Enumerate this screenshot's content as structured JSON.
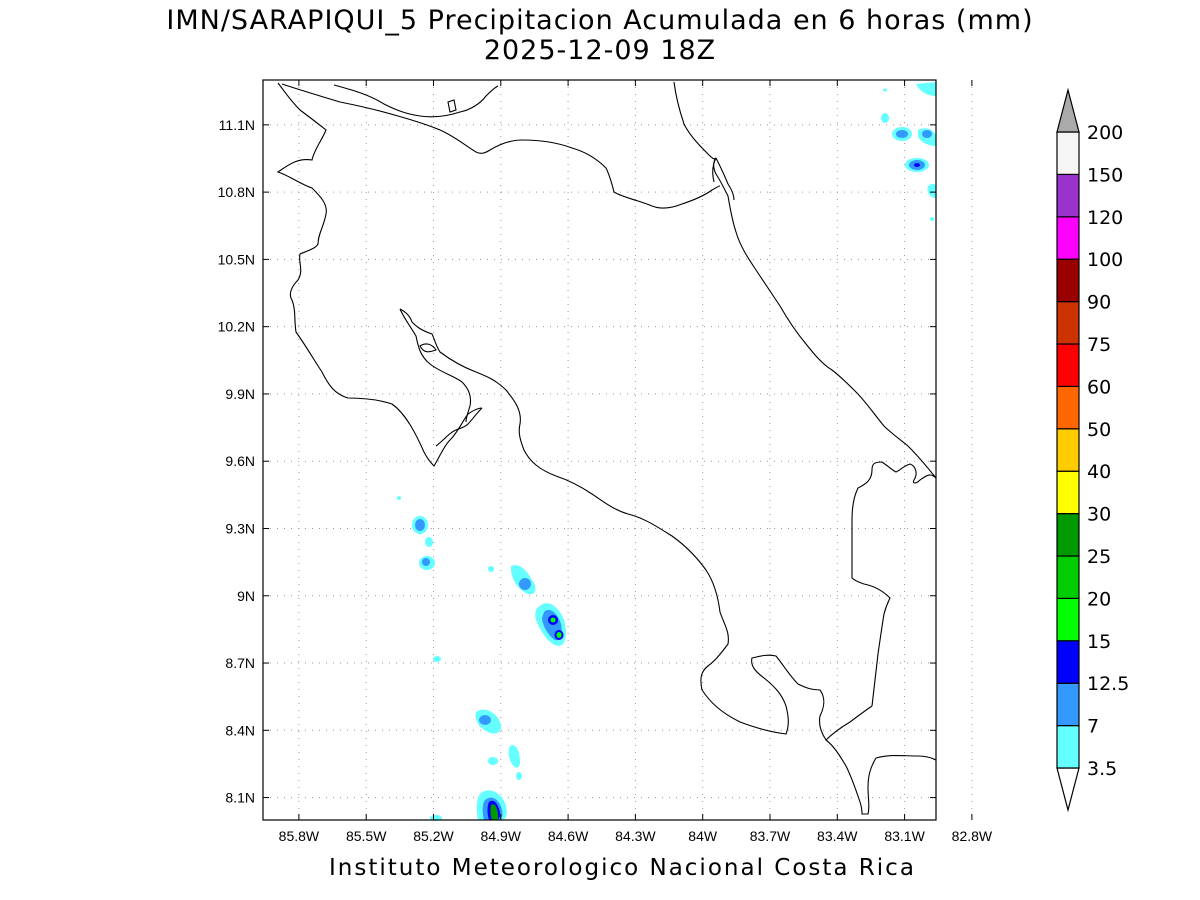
{
  "header": {
    "title": "IMN/SARAPIQUI_5 Precipitacion Acumulada en 6 horas (mm)",
    "subtitle": "2025-12-09 18Z"
  },
  "footer": {
    "credit": "Instituto Meteorologico Nacional Costa Rica"
  },
  "map": {
    "lon_range": [
      -85.96,
      -82.96
    ],
    "lat_range": [
      8.0,
      11.3
    ],
    "lon_ticks": [
      {
        "value": -85.8,
        "label": "85.8W"
      },
      {
        "value": -85.5,
        "label": "85.5W"
      },
      {
        "value": -85.2,
        "label": "85.2W"
      },
      {
        "value": -84.9,
        "label": "84.9W"
      },
      {
        "value": -84.6,
        "label": "84.6W"
      },
      {
        "value": -84.3,
        "label": "84.3W"
      },
      {
        "value": -84.0,
        "label": "84W"
      },
      {
        "value": -83.7,
        "label": "83.7W"
      },
      {
        "value": -83.4,
        "label": "83.4W"
      },
      {
        "value": -83.1,
        "label": "83.1W"
      },
      {
        "value": -82.8,
        "label": "82.8W"
      }
    ],
    "lat_ticks": [
      {
        "value": 8.1,
        "label": "8.1N"
      },
      {
        "value": 8.4,
        "label": "8.4N"
      },
      {
        "value": 8.7,
        "label": "8.7N"
      },
      {
        "value": 9.0,
        "label": "9N"
      },
      {
        "value": 9.3,
        "label": "9.3N"
      },
      {
        "value": 9.6,
        "label": "9.6N"
      },
      {
        "value": 9.9,
        "label": "9.9N"
      },
      {
        "value": 10.2,
        "label": "10.2N"
      },
      {
        "value": 10.5,
        "label": "10.5N"
      },
      {
        "value": 10.8,
        "label": "10.8N"
      },
      {
        "value": 11.1,
        "label": "11.1N"
      }
    ],
    "grid": true,
    "colorbar": [
      {
        "label": "3.5",
        "color": "#66ffff"
      },
      {
        "label": "7",
        "color": "#3399ff"
      },
      {
        "label": "12.5",
        "color": "#0000ff"
      },
      {
        "label": "15",
        "color": "#00ff00"
      },
      {
        "label": "20",
        "color": "#00cc00"
      },
      {
        "label": "25",
        "color": "#009900"
      },
      {
        "label": "30",
        "color": "#ffff00"
      },
      {
        "label": "40",
        "color": "#ffcc00"
      },
      {
        "label": "50",
        "color": "#ff6600"
      },
      {
        "label": "60",
        "color": "#ff0000"
      },
      {
        "label": "75",
        "color": "#cc3300"
      },
      {
        "label": "90",
        "color": "#990000"
      },
      {
        "label": "100",
        "color": "#ff00ff"
      },
      {
        "label": "120",
        "color": "#9933cc"
      },
      {
        "label": "150",
        "color": "#f5f5f5"
      },
      {
        "label": "200",
        "color": "#aaaaaa"
      }
    ],
    "precip_cells": [
      {
        "lon": -85.19,
        "lat": 9.32,
        "level": 1
      },
      {
        "lon": -85.17,
        "lat": 9.23,
        "level": 0
      },
      {
        "lon": -85.17,
        "lat": 9.14,
        "level": 1
      },
      {
        "lon": -84.64,
        "lat": 9.07,
        "level": 1
      },
      {
        "lon": -84.51,
        "lat": 8.88,
        "level": 2
      },
      {
        "lon": -84.49,
        "lat": 8.82,
        "level": 3
      },
      {
        "lon": -84.82,
        "lat": 8.45,
        "level": 1
      },
      {
        "lon": -84.74,
        "lat": 8.28,
        "level": 0
      },
      {
        "lon": -84.79,
        "lat": 8.07,
        "level": 4
      },
      {
        "lon": -83.05,
        "lat": 11.06,
        "level": 1
      },
      {
        "lon": -82.97,
        "lat": 11.07,
        "level": 1
      },
      {
        "lon": -83.0,
        "lat": 10.93,
        "level": 2
      },
      {
        "lon": -82.97,
        "lat": 10.8,
        "level": 1
      }
    ]
  }
}
